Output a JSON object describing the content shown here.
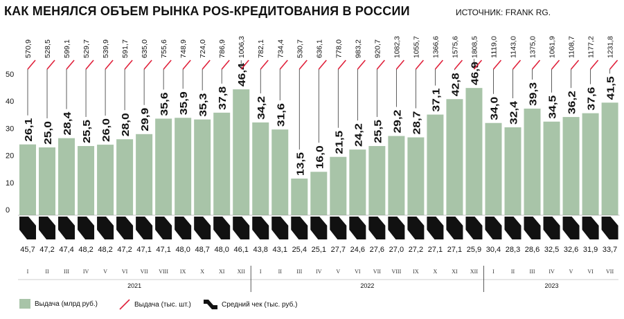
{
  "title": "КАК МЕНЯЛСЯ ОБЪЕМ РЫНКА POS-КРЕДИТОВАНИЯ В РОССИИ",
  "source": "ИСТОЧНИК: FRANK RG.",
  "legend": [
    {
      "label": "Выдача (млрд руб.)",
      "icon": "green-square-icon",
      "color": "#a8c4a8"
    },
    {
      "label": "Выдача (тыс. шт.)",
      "icon": "red-slash-icon",
      "color": "#e0203a"
    },
    {
      "label": "Средний чек (тыс. руб.)",
      "icon": "black-step-icon",
      "color": "#111111"
    }
  ],
  "colors": {
    "bar": "#a8c4a8",
    "count_line": "#e0203a",
    "check": "#111111"
  },
  "chart_data": {
    "type": "bar",
    "y_ticks": [
      "0",
      "10",
      "20",
      "30",
      "40",
      "50"
    ],
    "ylim": [
      0,
      55
    ],
    "categories": [
      "I",
      "II",
      "III",
      "IV",
      "V",
      "VI",
      "VII",
      "VIII",
      "IX",
      "X",
      "XI",
      "XII",
      "I",
      "II",
      "III",
      "IV",
      "V",
      "VI",
      "VII",
      "VIII",
      "IX",
      "X",
      "XI",
      "XII",
      "I",
      "II",
      "III",
      "IV",
      "V",
      "VI",
      "VII"
    ],
    "years": [
      {
        "label": "2021",
        "start": 0,
        "end": 11
      },
      {
        "label": "2022",
        "start": 12,
        "end": 23
      },
      {
        "label": "2023",
        "start": 24,
        "end": 30
      }
    ],
    "series": [
      {
        "name": "Выдача (млрд руб.)",
        "values": [
          26.1,
          25.0,
          28.4,
          25.5,
          26.0,
          28.0,
          29.9,
          35.6,
          35.9,
          35.3,
          37.8,
          46.4,
          34.2,
          31.6,
          13.5,
          16.0,
          21.5,
          24.2,
          25.5,
          29.2,
          28.7,
          37.1,
          42.8,
          46.9,
          34.0,
          32.4,
          39.3,
          34.5,
          36.2,
          37.6,
          41.5
        ],
        "labels": [
          "26,1",
          "25,0",
          "28,4",
          "25,5",
          "26,0",
          "28,0",
          "29,9",
          "35,6",
          "35,9",
          "35,3",
          "37,8",
          "46,4",
          "34,2",
          "31,6",
          "13,5",
          "16,0",
          "21,5",
          "24,2",
          "25,5",
          "29,2",
          "28,7",
          "37,1",
          "42,8",
          "46,9",
          "34,0",
          "32,4",
          "39,3",
          "34,5",
          "36,2",
          "37,6",
          "41,5"
        ]
      },
      {
        "name": "Выдача (тыс. шт.)",
        "values": [
          570.9,
          528.5,
          599.1,
          529.7,
          539.9,
          591.7,
          635.0,
          755.6,
          748.9,
          724.0,
          786.9,
          1006.3,
          782.1,
          734.4,
          530.7,
          636.1,
          778.0,
          983.2,
          920.7,
          1082.3,
          1055.7,
          1366.6,
          1575.6,
          1808.5,
          1119.0,
          1143.0,
          1375.0,
          1061.9,
          1108.7,
          1177.2,
          1231.8
        ],
        "labels": [
          "570,9",
          "528,5",
          "599,1",
          "529,7",
          "539,9",
          "591,7",
          "635,0",
          "755,6",
          "748,9",
          "724,0",
          "786,9",
          "1006,3",
          "782,1",
          "734,4",
          "530,7",
          "636,1",
          "778,0",
          "983,2",
          "920,7",
          "1082,3",
          "1055,7",
          "1366,6",
          "1575,6",
          "1808,5",
          "1119,0",
          "1143,0",
          "1375,0",
          "1061,9",
          "1108,7",
          "1177,2",
          "1231,8"
        ]
      },
      {
        "name": "Средний чек (тыс. руб.)",
        "values": [
          45.7,
          47.2,
          47.4,
          48.2,
          48.2,
          47.2,
          47.1,
          47.1,
          48.0,
          48.7,
          48.0,
          46.1,
          43.8,
          43.1,
          25.4,
          25.1,
          27.7,
          24.6,
          27.6,
          27.0,
          27.2,
          27.1,
          27.1,
          25.9,
          30.4,
          28.3,
          28.6,
          32.5,
          32.6,
          31.9,
          33.7
        ],
        "labels": [
          "45,7",
          "47,2",
          "47,4",
          "48,2",
          "48,2",
          "47,2",
          "47,1",
          "47,1",
          "48,0",
          "48,7",
          "48,0",
          "46,1",
          "43,8",
          "43,1",
          "25,4",
          "25,1",
          "27,7",
          "24,6",
          "27,6",
          "27,0",
          "27,2",
          "27,1",
          "27,1",
          "25,9",
          "30,4",
          "28,3",
          "28,6",
          "32,5",
          "32,6",
          "31,9",
          "33,7"
        ]
      }
    ]
  }
}
